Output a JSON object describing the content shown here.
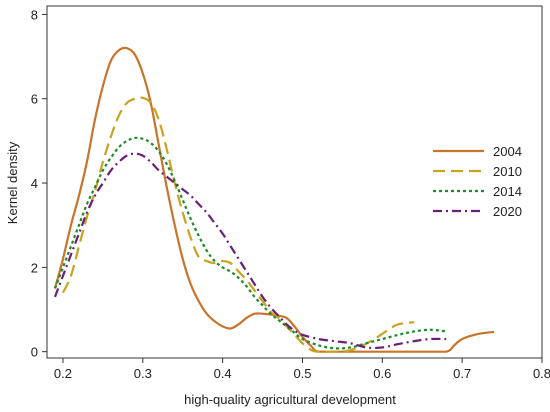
{
  "chart_data": {
    "type": "line",
    "xlabel": "high-quality agricultural development",
    "ylabel": "Kernel density",
    "xlim": [
      0.18,
      0.8
    ],
    "ylim": [
      -0.15,
      8.2
    ],
    "x_ticks": [
      "0.2",
      "0.3",
      "0.4",
      "0.5",
      "0.6",
      "0.7",
      "0.8"
    ],
    "y_ticks": [
      "0",
      "2",
      "4",
      "6",
      "8"
    ],
    "grid": false,
    "legend_position": "right",
    "series": [
      {
        "name": "2004",
        "color": "#c8742a",
        "dash": "",
        "points": [
          [
            0.19,
            1.5
          ],
          [
            0.2,
            2.2
          ],
          [
            0.21,
            3.0
          ],
          [
            0.22,
            3.7
          ],
          [
            0.23,
            4.5
          ],
          [
            0.24,
            5.5
          ],
          [
            0.25,
            6.3
          ],
          [
            0.26,
            6.9
          ],
          [
            0.27,
            7.15
          ],
          [
            0.28,
            7.2
          ],
          [
            0.29,
            7.05
          ],
          [
            0.3,
            6.6
          ],
          [
            0.31,
            5.9
          ],
          [
            0.32,
            4.9
          ],
          [
            0.33,
            3.9
          ],
          [
            0.34,
            3.0
          ],
          [
            0.35,
            2.2
          ],
          [
            0.36,
            1.6
          ],
          [
            0.37,
            1.2
          ],
          [
            0.38,
            0.9
          ],
          [
            0.39,
            0.72
          ],
          [
            0.4,
            0.6
          ],
          [
            0.41,
            0.55
          ],
          [
            0.42,
            0.65
          ],
          [
            0.43,
            0.8
          ],
          [
            0.44,
            0.9
          ],
          [
            0.45,
            0.9
          ],
          [
            0.46,
            0.88
          ],
          [
            0.47,
            0.85
          ],
          [
            0.48,
            0.8
          ],
          [
            0.49,
            0.6
          ],
          [
            0.5,
            0.35
          ],
          [
            0.51,
            0.15
          ],
          [
            0.52,
            0.0
          ],
          [
            0.55,
            0.0
          ],
          [
            0.6,
            0.0
          ],
          [
            0.65,
            0.0
          ],
          [
            0.68,
            0.0
          ],
          [
            0.69,
            0.15
          ],
          [
            0.7,
            0.3
          ],
          [
            0.72,
            0.42
          ],
          [
            0.74,
            0.47
          ]
        ]
      },
      {
        "name": "2010",
        "color": "#c9a21f",
        "dash": "12,6",
        "points": [
          [
            0.2,
            1.4
          ],
          [
            0.21,
            1.8
          ],
          [
            0.22,
            2.5
          ],
          [
            0.23,
            3.2
          ],
          [
            0.24,
            3.8
          ],
          [
            0.25,
            4.5
          ],
          [
            0.26,
            5.1
          ],
          [
            0.27,
            5.6
          ],
          [
            0.28,
            5.9
          ],
          [
            0.29,
            6.0
          ],
          [
            0.3,
            6.02
          ],
          [
            0.31,
            5.9
          ],
          [
            0.32,
            5.5
          ],
          [
            0.33,
            4.8
          ],
          [
            0.34,
            4.0
          ],
          [
            0.35,
            3.3
          ],
          [
            0.36,
            2.7
          ],
          [
            0.37,
            2.25
          ],
          [
            0.38,
            2.15
          ],
          [
            0.39,
            2.1
          ],
          [
            0.4,
            2.15
          ],
          [
            0.41,
            2.1
          ],
          [
            0.42,
            1.9
          ],
          [
            0.43,
            1.7
          ],
          [
            0.44,
            1.45
          ],
          [
            0.45,
            1.2
          ],
          [
            0.46,
            0.95
          ],
          [
            0.47,
            0.8
          ],
          [
            0.48,
            0.6
          ],
          [
            0.49,
            0.4
          ],
          [
            0.5,
            0.2
          ],
          [
            0.51,
            0.05
          ],
          [
            0.52,
            0.0
          ],
          [
            0.55,
            0.0
          ],
          [
            0.57,
            0.1
          ],
          [
            0.59,
            0.3
          ],
          [
            0.61,
            0.55
          ],
          [
            0.62,
            0.65
          ],
          [
            0.64,
            0.7
          ]
        ]
      },
      {
        "name": "2014",
        "color": "#1f8a2a",
        "dash": "3,3",
        "points": [
          [
            0.19,
            1.5
          ],
          [
            0.2,
            2.0
          ],
          [
            0.21,
            2.5
          ],
          [
            0.22,
            3.0
          ],
          [
            0.23,
            3.5
          ],
          [
            0.24,
            3.9
          ],
          [
            0.25,
            4.3
          ],
          [
            0.26,
            4.6
          ],
          [
            0.27,
            4.85
          ],
          [
            0.28,
            5.0
          ],
          [
            0.29,
            5.07
          ],
          [
            0.3,
            5.05
          ],
          [
            0.31,
            4.95
          ],
          [
            0.32,
            4.75
          ],
          [
            0.33,
            4.45
          ],
          [
            0.34,
            4.05
          ],
          [
            0.35,
            3.6
          ],
          [
            0.36,
            3.15
          ],
          [
            0.37,
            2.75
          ],
          [
            0.38,
            2.4
          ],
          [
            0.39,
            2.15
          ],
          [
            0.4,
            2.0
          ],
          [
            0.41,
            1.9
          ],
          [
            0.42,
            1.75
          ],
          [
            0.43,
            1.55
          ],
          [
            0.44,
            1.3
          ],
          [
            0.45,
            1.1
          ],
          [
            0.46,
            0.9
          ],
          [
            0.47,
            0.75
          ],
          [
            0.48,
            0.6
          ],
          [
            0.49,
            0.45
          ],
          [
            0.5,
            0.3
          ],
          [
            0.52,
            0.15
          ],
          [
            0.54,
            0.08
          ],
          [
            0.56,
            0.1
          ],
          [
            0.58,
            0.2
          ],
          [
            0.6,
            0.3
          ],
          [
            0.62,
            0.4
          ],
          [
            0.64,
            0.48
          ],
          [
            0.66,
            0.52
          ],
          [
            0.68,
            0.48
          ]
        ]
      },
      {
        "name": "2020",
        "color": "#6a1f7a",
        "dash": "9,4,2,4",
        "points": [
          [
            0.19,
            1.3
          ],
          [
            0.2,
            1.8
          ],
          [
            0.21,
            2.3
          ],
          [
            0.22,
            2.8
          ],
          [
            0.23,
            3.3
          ],
          [
            0.24,
            3.7
          ],
          [
            0.25,
            4.0
          ],
          [
            0.26,
            4.3
          ],
          [
            0.27,
            4.5
          ],
          [
            0.28,
            4.65
          ],
          [
            0.29,
            4.7
          ],
          [
            0.3,
            4.65
          ],
          [
            0.31,
            4.5
          ],
          [
            0.32,
            4.3
          ],
          [
            0.33,
            4.15
          ],
          [
            0.34,
            4.0
          ],
          [
            0.35,
            3.85
          ],
          [
            0.36,
            3.7
          ],
          [
            0.37,
            3.5
          ],
          [
            0.38,
            3.3
          ],
          [
            0.39,
            3.05
          ],
          [
            0.4,
            2.8
          ],
          [
            0.41,
            2.5
          ],
          [
            0.42,
            2.2
          ],
          [
            0.43,
            1.9
          ],
          [
            0.44,
            1.6
          ],
          [
            0.45,
            1.3
          ],
          [
            0.46,
            1.05
          ],
          [
            0.47,
            0.85
          ],
          [
            0.48,
            0.65
          ],
          [
            0.49,
            0.5
          ],
          [
            0.5,
            0.4
          ],
          [
            0.52,
            0.3
          ],
          [
            0.54,
            0.25
          ],
          [
            0.56,
            0.2
          ],
          [
            0.58,
            0.1
          ],
          [
            0.6,
            0.1
          ],
          [
            0.62,
            0.18
          ],
          [
            0.64,
            0.25
          ],
          [
            0.66,
            0.3
          ],
          [
            0.68,
            0.3
          ]
        ]
      }
    ]
  }
}
